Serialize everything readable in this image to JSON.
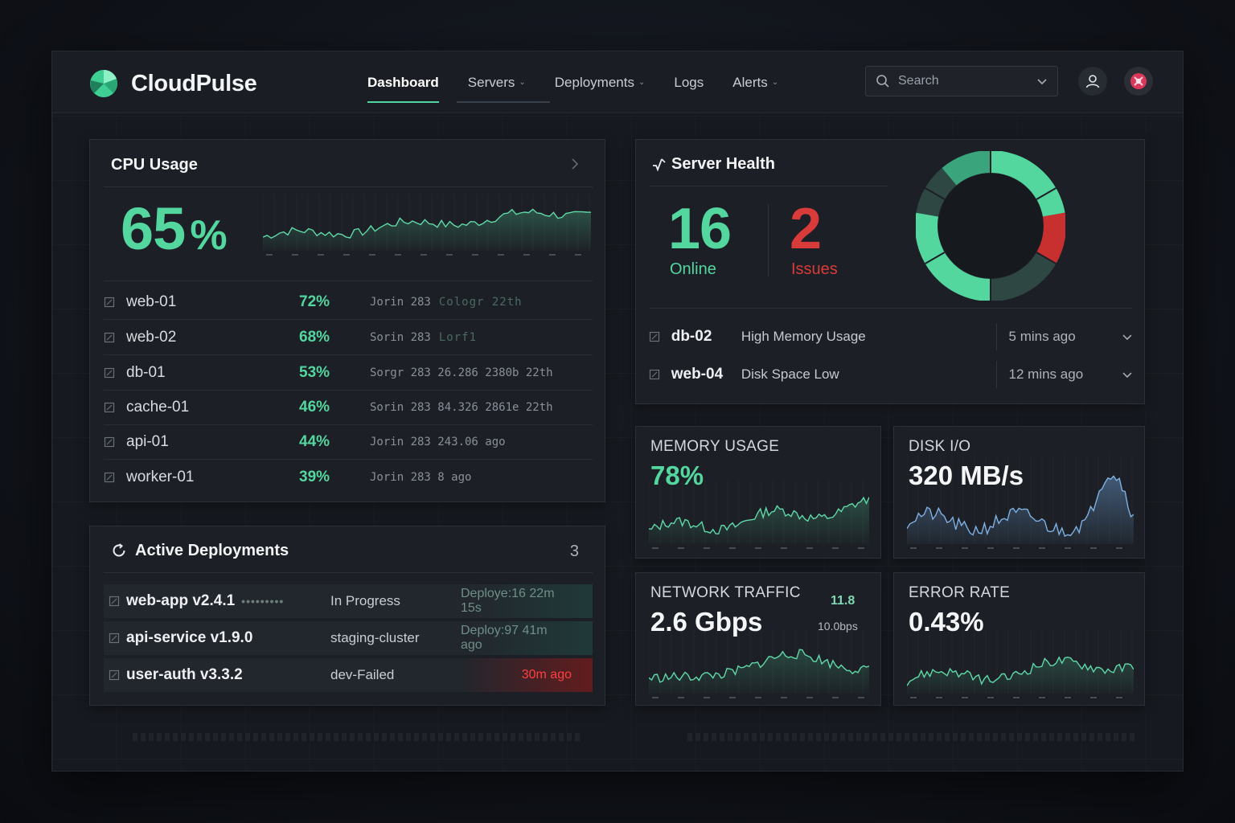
{
  "app": {
    "name": "CloudPulse"
  },
  "nav": {
    "items": [
      {
        "label": "Dashboard",
        "active": true,
        "dropdown": false
      },
      {
        "label": "Servers",
        "active": false,
        "dropdown": true
      },
      {
        "label": "Deployments",
        "active": false,
        "dropdown": true
      },
      {
        "label": "Logs",
        "active": false,
        "dropdown": false
      },
      {
        "label": "Alerts",
        "active": false,
        "dropdown": true
      }
    ]
  },
  "search": {
    "placeholder": "Search"
  },
  "cpu": {
    "title": "CPU Usage",
    "value": "65",
    "unit": "%",
    "rows": [
      {
        "name": "web-01",
        "pct": "72%",
        "meta": "Jorin 283",
        "meta2": "Cologr 22th"
      },
      {
        "name": "web-02",
        "pct": "68%",
        "meta": "Sorin 283",
        "meta2": "Lorf1"
      },
      {
        "name": "db-01",
        "pct": "53%",
        "meta": "Sorgr 283 26.286 2380b 22th",
        "meta2": ""
      },
      {
        "name": "cache-01",
        "pct": "46%",
        "meta": "Sorin 283 84.326 2861e 22th",
        "meta2": ""
      },
      {
        "name": "api-01",
        "pct": "44%",
        "meta": "Jorin 283 243.06 ago",
        "meta2": ""
      },
      {
        "name": "worker-01",
        "pct": "39%",
        "meta": "Jorin 283 8 ago",
        "meta2": ""
      }
    ]
  },
  "deployments": {
    "title": "Active Deployments",
    "count": "3",
    "rows": [
      {
        "name": "web-app v2.4.1",
        "status": "In Progress",
        "time": "Deploye:16 22m 15s",
        "failed": false
      },
      {
        "name": "api-service v1.9.0",
        "status": "staging-cluster",
        "time": "Deploy:97 41m ago",
        "failed": false
      },
      {
        "name": "user-auth v3.3.2",
        "status": "dev-Failed",
        "time": "30m ago",
        "failed": true
      }
    ]
  },
  "health": {
    "title": "Server Health",
    "online": "16",
    "online_label": "Online",
    "issues": "2",
    "issues_label": "Issues",
    "donut": {
      "online": 16,
      "issues": 2
    },
    "colors": {
      "online": "#54d69f",
      "issues": "#c8302f",
      "track": "#2a3d39"
    },
    "alerts": [
      {
        "server": "db-02",
        "message": "High Memory Usage",
        "time": "5 mins ago"
      },
      {
        "server": "web-04",
        "message": "Disk Space Low",
        "time": "12 mins ago"
      }
    ]
  },
  "metrics": {
    "memory": {
      "label": "MEMORY USAGE",
      "value": "78%"
    },
    "disk": {
      "label": "DISK I/O",
      "value": "320 MB/s"
    },
    "network": {
      "label": "NETWORK TRAFFIC",
      "value": "2.6 Gbps",
      "sub1": "11.8",
      "sub2": "10.0bps"
    },
    "error": {
      "label": "ERROR RATE",
      "value": "0.43%"
    }
  },
  "colors": {
    "accent": "#54d69f",
    "danger": "#d93b3b",
    "disk": "#6fa3d9"
  }
}
